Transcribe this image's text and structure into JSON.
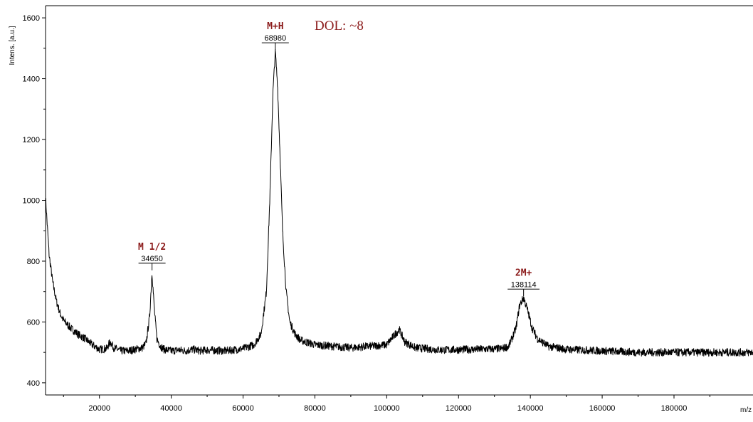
{
  "chart_data": {
    "type": "line",
    "xlabel": "m/z",
    "ylabel": "Intens. [a.u.]",
    "xlim": [
      5000,
      202000
    ],
    "ylim": [
      360,
      1640
    ],
    "x_ticks": [
      {
        "value": 20000,
        "label": "20000"
      },
      {
        "value": 40000,
        "label": "40000"
      },
      {
        "value": 60000,
        "label": "60000"
      },
      {
        "value": 80000,
        "label": "80000"
      },
      {
        "value": 100000,
        "label": "100000"
      },
      {
        "value": 120000,
        "label": "120000"
      },
      {
        "value": 140000,
        "label": "140000"
      },
      {
        "value": 160000,
        "label": "160000"
      },
      {
        "value": 180000,
        "label": "180000"
      }
    ],
    "y_ticks": [
      {
        "value": 400,
        "label": "400"
      },
      {
        "value": 600,
        "label": "600"
      },
      {
        "value": 800,
        "label": "800"
      },
      {
        "value": 1000,
        "label": "1000"
      },
      {
        "value": 1200,
        "label": "1200"
      },
      {
        "value": 1400,
        "label": "1400"
      },
      {
        "value": 1600,
        "label": "1600"
      }
    ],
    "grid": false,
    "series": [
      {
        "x": [
          5000,
          6000,
          7000,
          8000,
          9000,
          10000,
          12000,
          14000,
          16000,
          18000,
          20000,
          22000,
          23000,
          24000,
          26000,
          28000,
          30000,
          32000,
          33000,
          34000,
          34650,
          35300,
          36000,
          37000,
          38000,
          40000,
          42000,
          44000,
          46000,
          48000,
          50000,
          55000,
          60000,
          63000,
          65000,
          66500,
          67500,
          68300,
          68980,
          69600,
          70300,
          71000,
          72000,
          73000,
          74500,
          76000,
          80000,
          90000,
          100000,
          102000,
          103500,
          105000,
          108000,
          115000,
          125000,
          132000,
          134000,
          136000,
          137000,
          138114,
          139200,
          140500,
          142000,
          145000,
          150000,
          160000,
          170000,
          180000,
          190000,
          202000
        ],
        "y": [
          1010,
          820,
          730,
          670,
          630,
          605,
          580,
          560,
          545,
          525,
          510,
          512,
          535,
          515,
          505,
          505,
          510,
          515,
          530,
          620,
          765,
          640,
          545,
          520,
          510,
          505,
          508,
          505,
          510,
          505,
          508,
          505,
          512,
          525,
          560,
          700,
          1020,
          1350,
          1490,
          1380,
          1150,
          900,
          700,
          600,
          560,
          540,
          525,
          515,
          525,
          555,
          575,
          535,
          515,
          508,
          510,
          512,
          520,
          580,
          655,
          680,
          640,
          580,
          545,
          520,
          510,
          505,
          500,
          500,
          500,
          500
        ]
      }
    ],
    "annotations": [
      {
        "label": "M 1/2",
        "mz": "34650",
        "x": 34650,
        "y": 765
      },
      {
        "label": "M+H",
        "mz": "68980",
        "x": 68980,
        "y": 1490
      },
      {
        "label": "2M+",
        "mz": "138114",
        "x": 138114,
        "y": 680
      }
    ],
    "note_text": "DOL: ~8"
  }
}
